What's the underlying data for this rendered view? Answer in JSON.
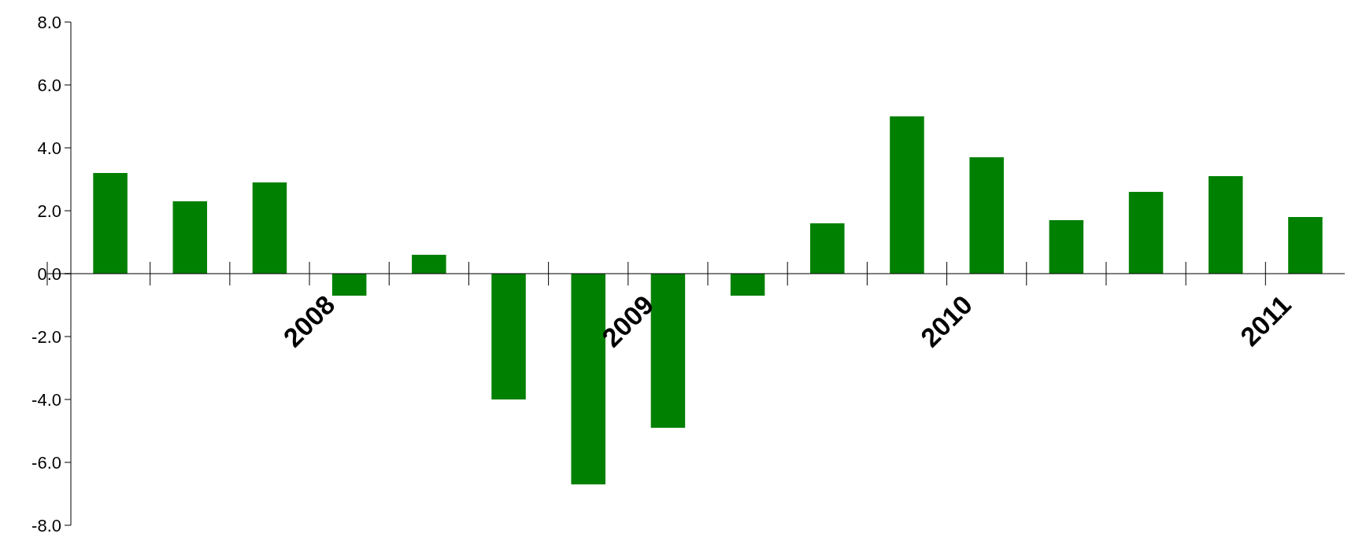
{
  "chart_data": {
    "type": "bar",
    "categories": [
      null,
      null,
      null,
      "2008",
      null,
      null,
      null,
      "2009",
      null,
      null,
      null,
      "2010",
      null,
      null,
      null,
      "2011"
    ],
    "values": [
      3.2,
      2.3,
      2.9,
      -0.7,
      0.6,
      -4.0,
      -6.7,
      -4.9,
      -0.7,
      1.6,
      5.0,
      3.7,
      1.7,
      2.6,
      3.1,
      1.8
    ],
    "color": "#008000",
    "ylim": [
      -8,
      8
    ],
    "yticks": [
      {
        "value": -8,
        "label": "-8.0"
      },
      {
        "value": -6,
        "label": "-6.0"
      },
      {
        "value": -4,
        "label": "-4.0"
      },
      {
        "value": -2,
        "label": "-2.0"
      },
      {
        "value": 0,
        "label": "0.0"
      },
      {
        "value": 2,
        "label": "2.0"
      },
      {
        "value": 4,
        "label": "4.0"
      },
      {
        "value": 6,
        "label": "6.0"
      },
      {
        "value": 8,
        "label": "8.0"
      }
    ],
    "grid": false
  }
}
